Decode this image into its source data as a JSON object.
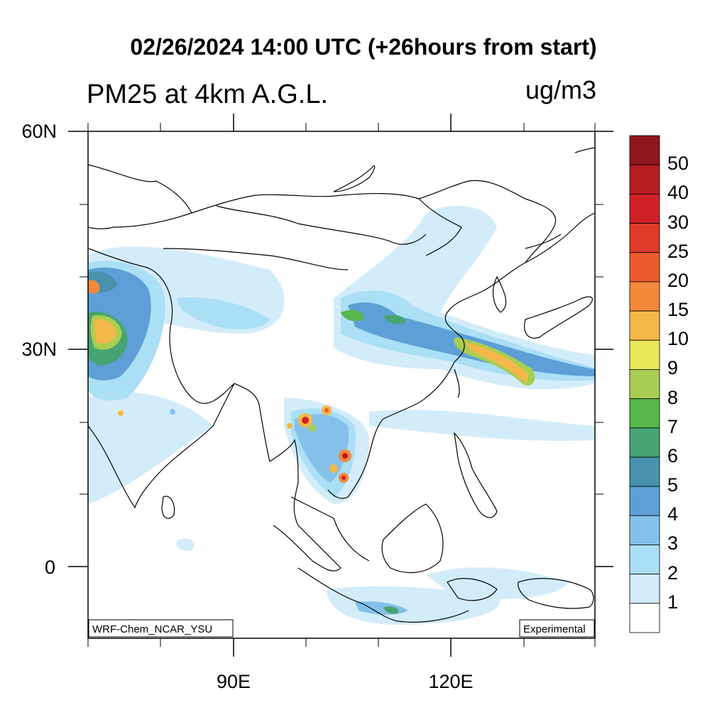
{
  "title": "02/26/2024 14:00 UTC (+26hours from start)",
  "variable": "PM25 at 4km A.G.L.",
  "units": "ug/m3",
  "lat_labels": [
    "60N",
    "30N",
    "0"
  ],
  "lon_labels": [
    "90E",
    "120E"
  ],
  "model_label": "WRF-Chem_NCAR_YSU",
  "status_label": "Experimental",
  "colorbar": {
    "labels": [
      "50",
      "40",
      "30",
      "25",
      "20",
      "15",
      "10",
      "9",
      "8",
      "7",
      "6",
      "5",
      "4",
      "3",
      "2",
      "1"
    ],
    "colors": [
      "#8f161b",
      "#b51d20",
      "#d02128",
      "#e03a2a",
      "#ec5a2c",
      "#f3883a",
      "#f4b84a",
      "#ebe55a",
      "#a9cd52",
      "#56b84a",
      "#46a472",
      "#4892ad",
      "#5d9fd6",
      "#84c1ea",
      "#aadff5",
      "#d3ecfa",
      "#ffffff"
    ]
  }
}
